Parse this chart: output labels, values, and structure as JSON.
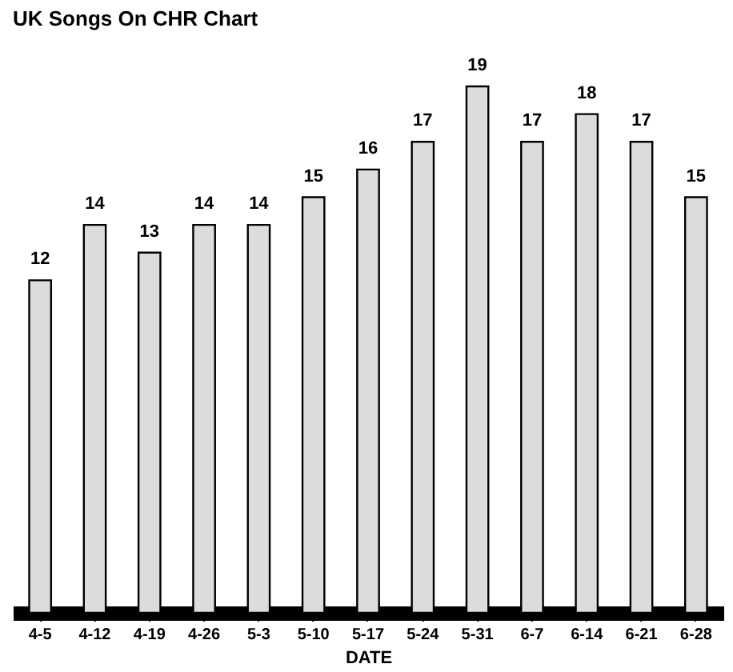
{
  "chart_data": {
    "type": "bar",
    "title": "UK Songs On CHR Chart",
    "xlabel": "DATE",
    "categories": [
      "4-5",
      "4-12",
      "4-19",
      "4-26",
      "5-3",
      "5-10",
      "5-17",
      "5-24",
      "5-31",
      "6-7",
      "6-14",
      "6-21",
      "6-28"
    ],
    "values": [
      12,
      14,
      13,
      14,
      14,
      15,
      16,
      17,
      19,
      17,
      18,
      17,
      15
    ],
    "color": "#dcdcdc",
    "data_labels": true
  }
}
